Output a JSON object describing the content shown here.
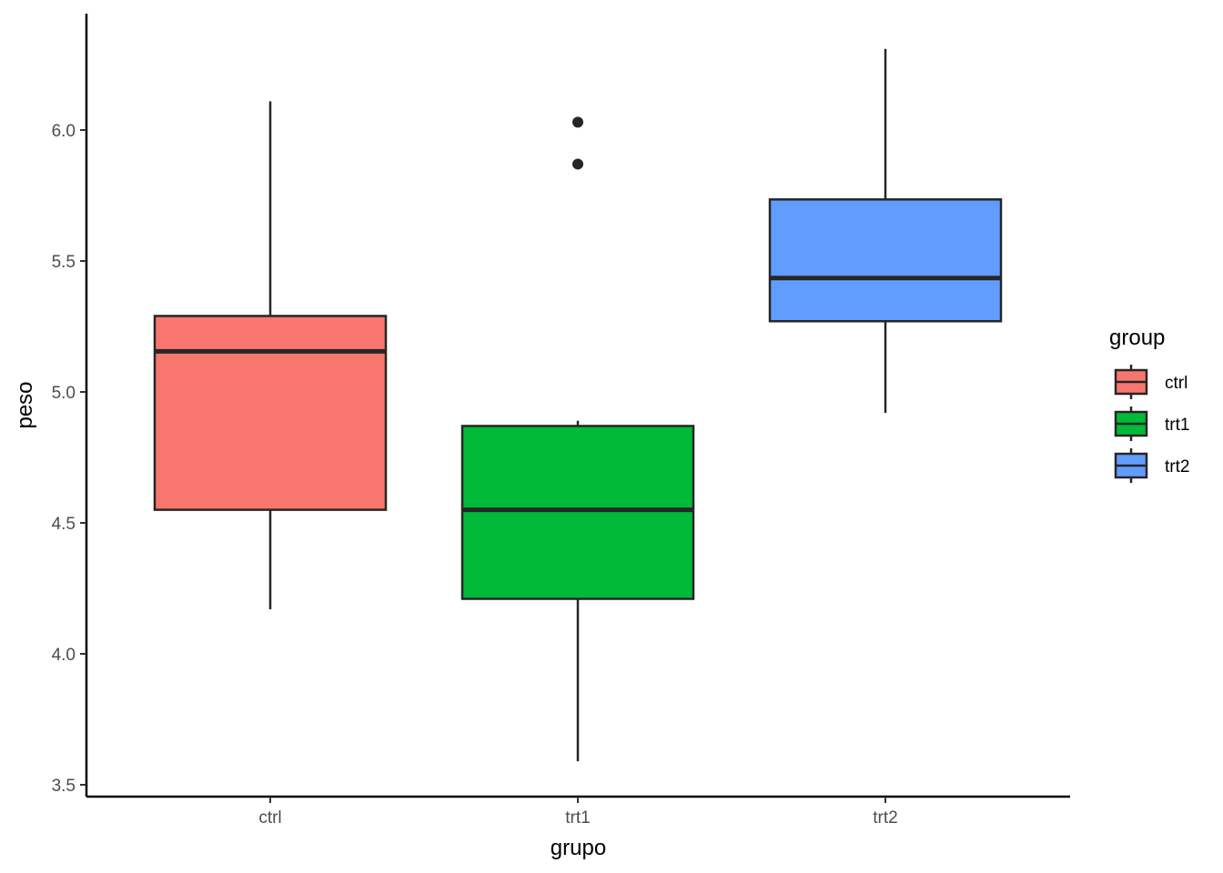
{
  "chart_data": {
    "type": "boxplot",
    "xlabel": "grupo",
    "ylabel": "peso",
    "ylim": [
      3.47,
      6.45
    ],
    "yticks": [
      "3.5",
      "4.0",
      "4.5",
      "5.0",
      "5.5",
      "6.0"
    ],
    "categories": [
      "ctrl",
      "trt1",
      "trt2"
    ],
    "legend": {
      "title": "group",
      "position": "right"
    },
    "series": [
      {
        "name": "ctrl",
        "color": "#F8766D",
        "whisker_low": 4.17,
        "q1": 4.55,
        "median": 5.155,
        "q3": 5.29,
        "whisker_high": 6.11,
        "outliers": []
      },
      {
        "name": "trt1",
        "color": "#00BA38",
        "whisker_low": 3.59,
        "q1": 4.21,
        "median": 4.55,
        "q3": 4.87,
        "whisker_high": 4.89,
        "outliers": [
          6.03,
          5.87
        ]
      },
      {
        "name": "trt2",
        "color": "#619CFF",
        "whisker_low": 4.92,
        "q1": 5.27,
        "median": 5.435,
        "q3": 5.735,
        "whisker_high": 6.31,
        "outliers": []
      }
    ],
    "grid": false
  }
}
